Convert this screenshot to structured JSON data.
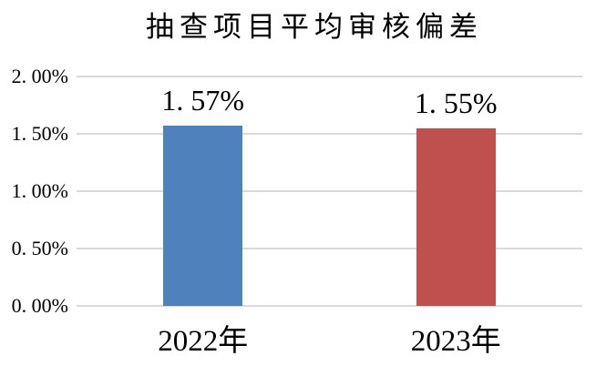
{
  "chart_data": {
    "type": "bar",
    "title": "抽查项目平均审核偏差",
    "categories": [
      "2022年",
      "2023年"
    ],
    "values": [
      1.57,
      1.55
    ],
    "data_labels": [
      "1. 57%",
      "1. 55%"
    ],
    "series_colors": [
      "#4F81BD",
      "#C0504D"
    ],
    "xlabel": "",
    "ylabel": "",
    "ylim": [
      0,
      2
    ],
    "y_tick_step": 0.5,
    "y_ticks": [
      {
        "value": 2.0,
        "label": "2. 00%"
      },
      {
        "value": 1.5,
        "label": "1. 50%"
      },
      {
        "value": 1.0,
        "label": "1. 00%"
      },
      {
        "value": 0.5,
        "label": "0. 50%"
      },
      {
        "value": 0.0,
        "label": "0. 00%"
      }
    ],
    "grid": true,
    "gridline_color": "#D9D9D9",
    "legend_position": "none",
    "background_color": "#FFFFFF",
    "text_color": "#000000"
  }
}
